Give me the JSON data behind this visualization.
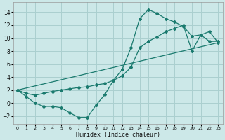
{
  "xlabel": "Humidex (Indice chaleur)",
  "bg_color": "#cce8e8",
  "grid_color": "#aacfcf",
  "line_color": "#1a7a6e",
  "xlim": [
    -0.5,
    23.5
  ],
  "ylim": [
    -3.2,
    15.5
  ],
  "xticks": [
    0,
    1,
    2,
    3,
    4,
    5,
    6,
    7,
    8,
    9,
    10,
    11,
    12,
    13,
    14,
    15,
    16,
    17,
    18,
    19,
    20,
    21,
    22,
    23
  ],
  "yticks": [
    -2,
    0,
    2,
    4,
    6,
    8,
    10,
    12,
    14
  ],
  "zigzag_x": [
    0,
    1,
    2,
    3,
    4,
    5,
    6,
    7,
    8,
    9,
    10,
    11,
    12,
    13,
    14,
    15,
    16,
    17,
    18,
    19,
    20,
    21,
    22,
    23
  ],
  "zigzag_y": [
    2.0,
    1.0,
    0.0,
    -0.5,
    -0.5,
    -0.7,
    -1.5,
    -2.2,
    -2.2,
    -0.3,
    1.3,
    3.5,
    5.2,
    8.5,
    13.0,
    14.4,
    13.8,
    13.0,
    12.5,
    11.8,
    10.3,
    10.5,
    9.5,
    9.5
  ],
  "line2_x": [
    0,
    1,
    2,
    3,
    4,
    5,
    6,
    7,
    8,
    9,
    10,
    11,
    12,
    13,
    14,
    15,
    16,
    17,
    18,
    19,
    20,
    21,
    22,
    23
  ],
  "line2_y": [
    2.0,
    1.5,
    1.2,
    1.5,
    1.8,
    2.0,
    2.2,
    2.4,
    2.5,
    2.8,
    3.0,
    3.5,
    4.2,
    5.5,
    8.5,
    9.5,
    10.2,
    11.0,
    11.5,
    12.0,
    8.0,
    10.5,
    11.0,
    9.3
  ],
  "line3_x": [
    0,
    23
  ],
  "line3_y": [
    2.0,
    9.3
  ]
}
